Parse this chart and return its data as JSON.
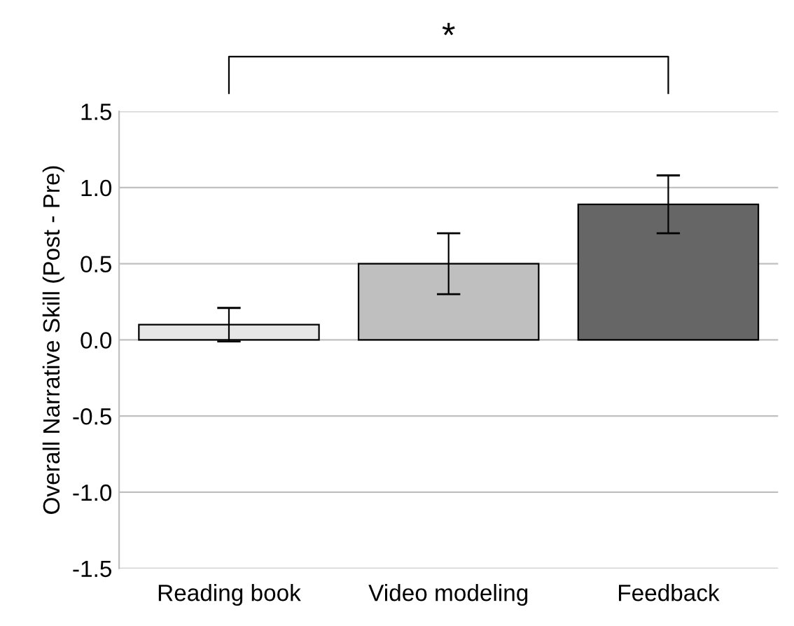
{
  "chart_data": {
    "type": "bar",
    "ylabel": "Overall Narrative Skill (Post - Pre)",
    "categories": [
      "Reading book",
      "Video modeling",
      "Feedback"
    ],
    "values": [
      0.1,
      0.5,
      0.89
    ],
    "errors": [
      0.11,
      0.2,
      0.19
    ],
    "colors": [
      "#e6e6e6",
      "#bfbfbf",
      "#666666"
    ],
    "ylim": [
      -1.5,
      1.5
    ],
    "yticks": [
      {
        "value": -1.5,
        "label": "-1.5"
      },
      {
        "value": -1.0,
        "label": "-1.0"
      },
      {
        "value": -0.5,
        "label": "-0.5"
      },
      {
        "value": 0.0,
        "label": "0.0"
      },
      {
        "value": 0.5,
        "label": "0.5"
      },
      {
        "value": 1.0,
        "label": "1.0"
      },
      {
        "value": 1.5,
        "label": "1.5"
      }
    ],
    "grid": "y",
    "annotations": [
      "*"
    ]
  }
}
